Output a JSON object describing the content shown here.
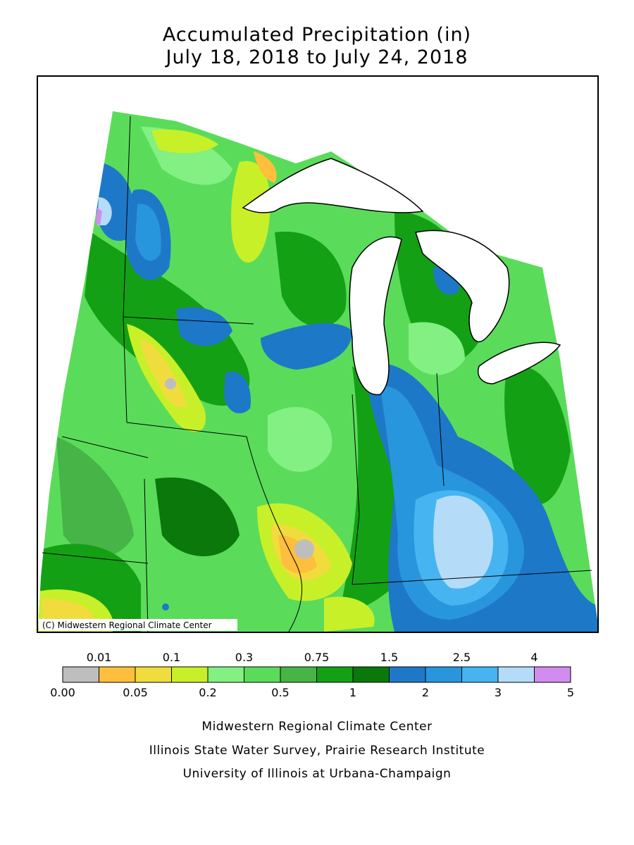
{
  "header": {
    "title": "Accumulated Precipitation (in)",
    "subtitle": "July 18, 2018 to July 24, 2018"
  },
  "map": {
    "copyright": "(C) Midwestern Regional Climate Center"
  },
  "legend": {
    "colors": [
      "#bebebe",
      "#ffbe3c",
      "#f0dc3c",
      "#c8f028",
      "#82f082",
      "#5adc5a",
      "#46b446",
      "#14a014",
      "#0a780a",
      "#1e78c8",
      "#2896dc",
      "#46b4f0",
      "#b4dcf8",
      "#d28cf0"
    ],
    "upper_labels": [
      "0.01",
      "0.1",
      "0.3",
      "0.75",
      "1.5",
      "2.5",
      "4"
    ],
    "lower_labels": [
      "0.00",
      "0.05",
      "0.2",
      "0.5",
      "1",
      "2",
      "3",
      "5"
    ]
  },
  "footer": {
    "lines": [
      "Midwestern Regional Climate Center",
      "Illinois State Water Survey, Prairie Research Institute",
      "University of Illinois at Urbana-Champaign"
    ]
  }
}
